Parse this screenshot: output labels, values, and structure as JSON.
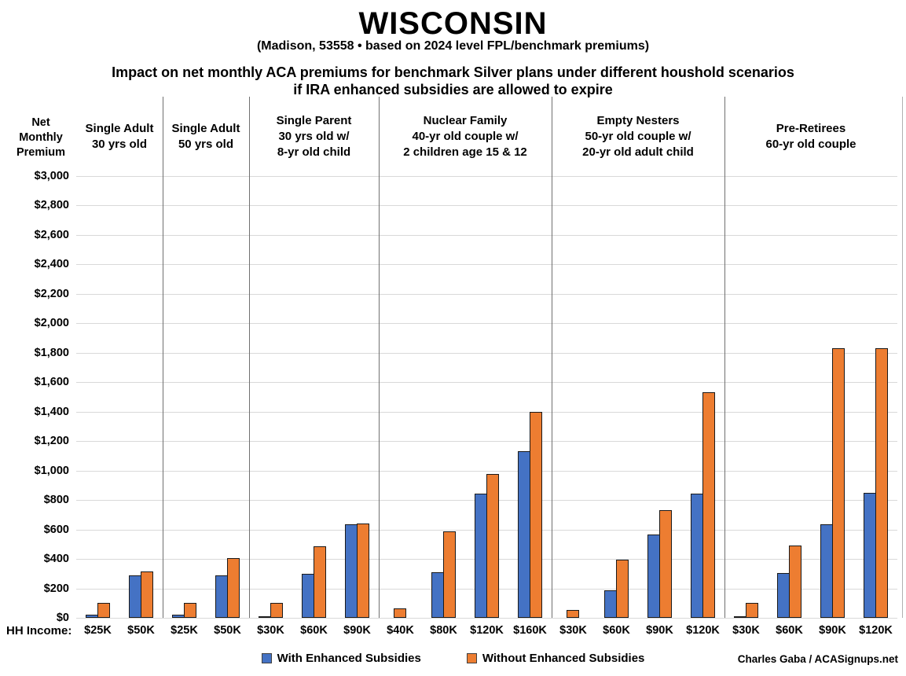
{
  "header": {
    "title": "WISCONSIN",
    "subtitle": "(Madison, 53558 • based on 2024 level FPL/benchmark premiums)",
    "chart_title_line1": "Impact on net monthly ACA premiums for benchmark Silver plans under different houshold scenarios",
    "chart_title_line2": "if IRA enhanced subsidies are allowed to expire"
  },
  "y_axis_label": "Net Monthly Premium",
  "x_axis_label": "HH Income:",
  "legend": {
    "with_enhanced": {
      "label": "With Enhanced Subsidies",
      "color": "#4472C4"
    },
    "without_enhanced": {
      "label": "Without Enhanced Subsidies",
      "color": "#ED7D31"
    }
  },
  "credit": "Charles Gaba / ACASignups.net",
  "chart_data": {
    "type": "bar",
    "title": "Impact on net monthly ACA premiums for benchmark Silver plans under different houshold scenarios if IRA enhanced subsidies are allowed to expire",
    "ylabel": "Net Monthly Premium",
    "xlabel": "HH Income:",
    "ylim": [
      0,
      3000
    ],
    "ytick_step": 200,
    "ytick_labels": [
      "$3,000",
      "$2,800",
      "$2,600",
      "$2,400",
      "$2,200",
      "$2,000",
      "$1,800",
      "$1,600",
      "$1,400",
      "$1,200",
      "$1,000",
      "$800",
      "$600",
      "$400",
      "$200",
      "$0"
    ],
    "grid": true,
    "legend_position": "bottom",
    "series_names": [
      "With Enhanced Subsidies",
      "Without Enhanced Subsidies"
    ],
    "groups": [
      {
        "label": "Single Adult\n30 yrs old",
        "categories": [
          "$25K",
          "$50K"
        ],
        "with_enhanced": [
          20,
          290
        ],
        "without_enhanced": [
          100,
          315
        ]
      },
      {
        "label": "Single Adult\n50 yrs old",
        "categories": [
          "$25K",
          "$50K"
        ],
        "with_enhanced": [
          20,
          290
        ],
        "without_enhanced": [
          100,
          405
        ]
      },
      {
        "label": "Single Parent\n30 yrs old w/\n8-yr old child",
        "categories": [
          "$30K",
          "$60K",
          "$90K"
        ],
        "with_enhanced": [
          5,
          300,
          635
        ],
        "without_enhanced": [
          100,
          485,
          640
        ]
      },
      {
        "label": "Nuclear Family\n40-yr old couple w/\n2 children age 15 & 12",
        "categories": [
          "$40K",
          "$80K",
          "$120K",
          "$160K"
        ],
        "with_enhanced": [
          0,
          310,
          845,
          1130
        ],
        "without_enhanced": [
          65,
          585,
          975,
          1400
        ]
      },
      {
        "label": "Empty Nesters\n50-yr old couple w/\n20-yr old adult child",
        "categories": [
          "$30K",
          "$60K",
          "$90K",
          "$120K"
        ],
        "with_enhanced": [
          0,
          185,
          565,
          845
        ],
        "without_enhanced": [
          55,
          395,
          730,
          1530
        ]
      },
      {
        "label": "Pre-Retirees\n60-yr old couple",
        "categories": [
          "$30K",
          "$60K",
          "$90K",
          "$120K"
        ],
        "with_enhanced": [
          5,
          305,
          635,
          850
        ],
        "without_enhanced": [
          100,
          490,
          1830,
          1830
        ]
      }
    ]
  }
}
